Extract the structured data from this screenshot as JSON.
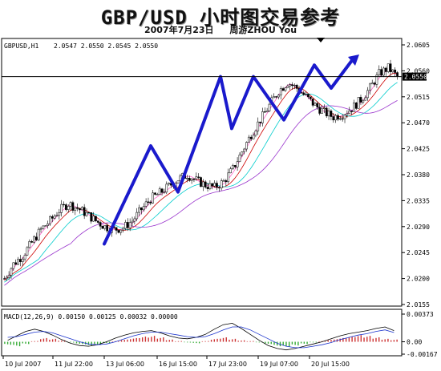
{
  "header": {
    "title": "GBP/USD 小时图交易参考",
    "date": "2007年7月23日",
    "author": "周游ZHOU You"
  },
  "chart_data": [
    {
      "type": "line",
      "panel": "price",
      "symbol_label": "GBPUSD,H1",
      "ohlc_label": "2.0547 2.0550 2.0545 2.0550",
      "y_ticks": [
        "2.0605",
        "2.0560",
        "2.0515",
        "2.0470",
        "2.0425",
        "2.0380",
        "2.0335",
        "2.0290",
        "2.0245",
        "2.0200",
        "2.0155"
      ],
      "ylim": [
        2.0155,
        2.0605
      ],
      "current_price": "2.0550",
      "current_price_value": 2.055,
      "x_ticks": [
        "10 Jul 2007",
        "11 Jul 22:00",
        "13 Jul 06:00",
        "16 Jul 15:00",
        "17 Jul 23:00",
        "19 Jul 07:00",
        "20 Jul 15:00"
      ],
      "close_series": [
        2.02,
        2.0225,
        2.024,
        2.0262,
        2.0285,
        2.03,
        2.0318,
        2.033,
        2.0322,
        2.0312,
        2.03,
        2.029,
        2.0285,
        2.0288,
        2.03,
        2.032,
        2.0338,
        2.0348,
        2.036,
        2.0372,
        2.038,
        2.037,
        2.0362,
        2.0358,
        2.0368,
        2.039,
        2.042,
        2.045,
        2.0475,
        2.05,
        2.0525,
        2.054,
        2.053,
        2.0515,
        2.05,
        2.0488,
        2.048,
        2.0485,
        2.0495,
        2.051,
        2.053,
        2.0555,
        2.0565,
        2.055
      ],
      "projection": [
        2.026,
        2.043,
        2.035,
        2.055,
        2.046,
        2.055,
        2.0475,
        2.057,
        2.053,
        2.058
      ]
    },
    {
      "type": "bar",
      "panel": "macd",
      "label": "MACD(12,26,9) 0.00150 0.00125 0.00032 0.00000",
      "y_ticks": [
        "0.00373",
        "0.00",
        "-0.00167"
      ],
      "ylim": [
        -0.00167,
        0.00373
      ],
      "histogram": [
        -0.0004,
        -0.0006,
        -0.0003,
        0.0001,
        0.0005,
        0.0004,
        0.0002,
        -0.0001,
        -0.0003,
        -0.0005,
        -0.0004,
        -0.0002,
        0.0001,
        0.0003,
        0.0005,
        0.0007,
        0.0008,
        0.0006,
        0.0003,
        0.0001,
        -0.0001,
        -0.0002,
        0.0001,
        0.0004,
        0.0006,
        0.0004,
        0.0002,
        0.0001,
        -0.0001,
        -0.0003,
        -0.0006,
        -0.0007,
        -0.0005,
        -0.0003,
        -0.0001,
        0.0001,
        0.0003,
        0.0005,
        0.0007,
        0.0009,
        0.0008,
        0.0006,
        0.0004,
        0.0003
      ],
      "macd": [
        0.0002,
        0.0008,
        0.0014,
        0.0017,
        0.0014,
        0.0009,
        0.0003,
        -0.0002,
        -0.0005,
        -0.0006,
        -0.0004,
        0.0,
        0.0005,
        0.0009,
        0.0012,
        0.0014,
        0.0015,
        0.0012,
        0.0008,
        0.0005,
        0.0004,
        0.0006,
        0.001,
        0.0017,
        0.0023,
        0.0025,
        0.0018,
        0.001,
        0.0002,
        -0.0005,
        -0.0009,
        -0.0011,
        -0.0009,
        -0.0006,
        -0.0003,
        0.0,
        0.0004,
        0.0008,
        0.0011,
        0.0013,
        0.0015,
        0.0018,
        0.002,
        0.0015
      ],
      "signal": [
        0.0006,
        0.0007,
        0.001,
        0.0013,
        0.0014,
        0.0012,
        0.0008,
        0.0004,
        0.0,
        -0.0003,
        -0.0004,
        -0.0003,
        0.0,
        0.0004,
        0.0008,
        0.0011,
        0.0013,
        0.0013,
        0.0011,
        0.0009,
        0.0007,
        0.0006,
        0.0007,
        0.0011,
        0.0016,
        0.002,
        0.002,
        0.0016,
        0.001,
        0.0004,
        -0.0002,
        -0.0006,
        -0.0008,
        -0.0008,
        -0.0006,
        -0.0004,
        -0.0001,
        0.0003,
        0.0006,
        0.0009,
        0.0011,
        0.0014,
        0.0016,
        0.00125
      ]
    }
  ]
}
